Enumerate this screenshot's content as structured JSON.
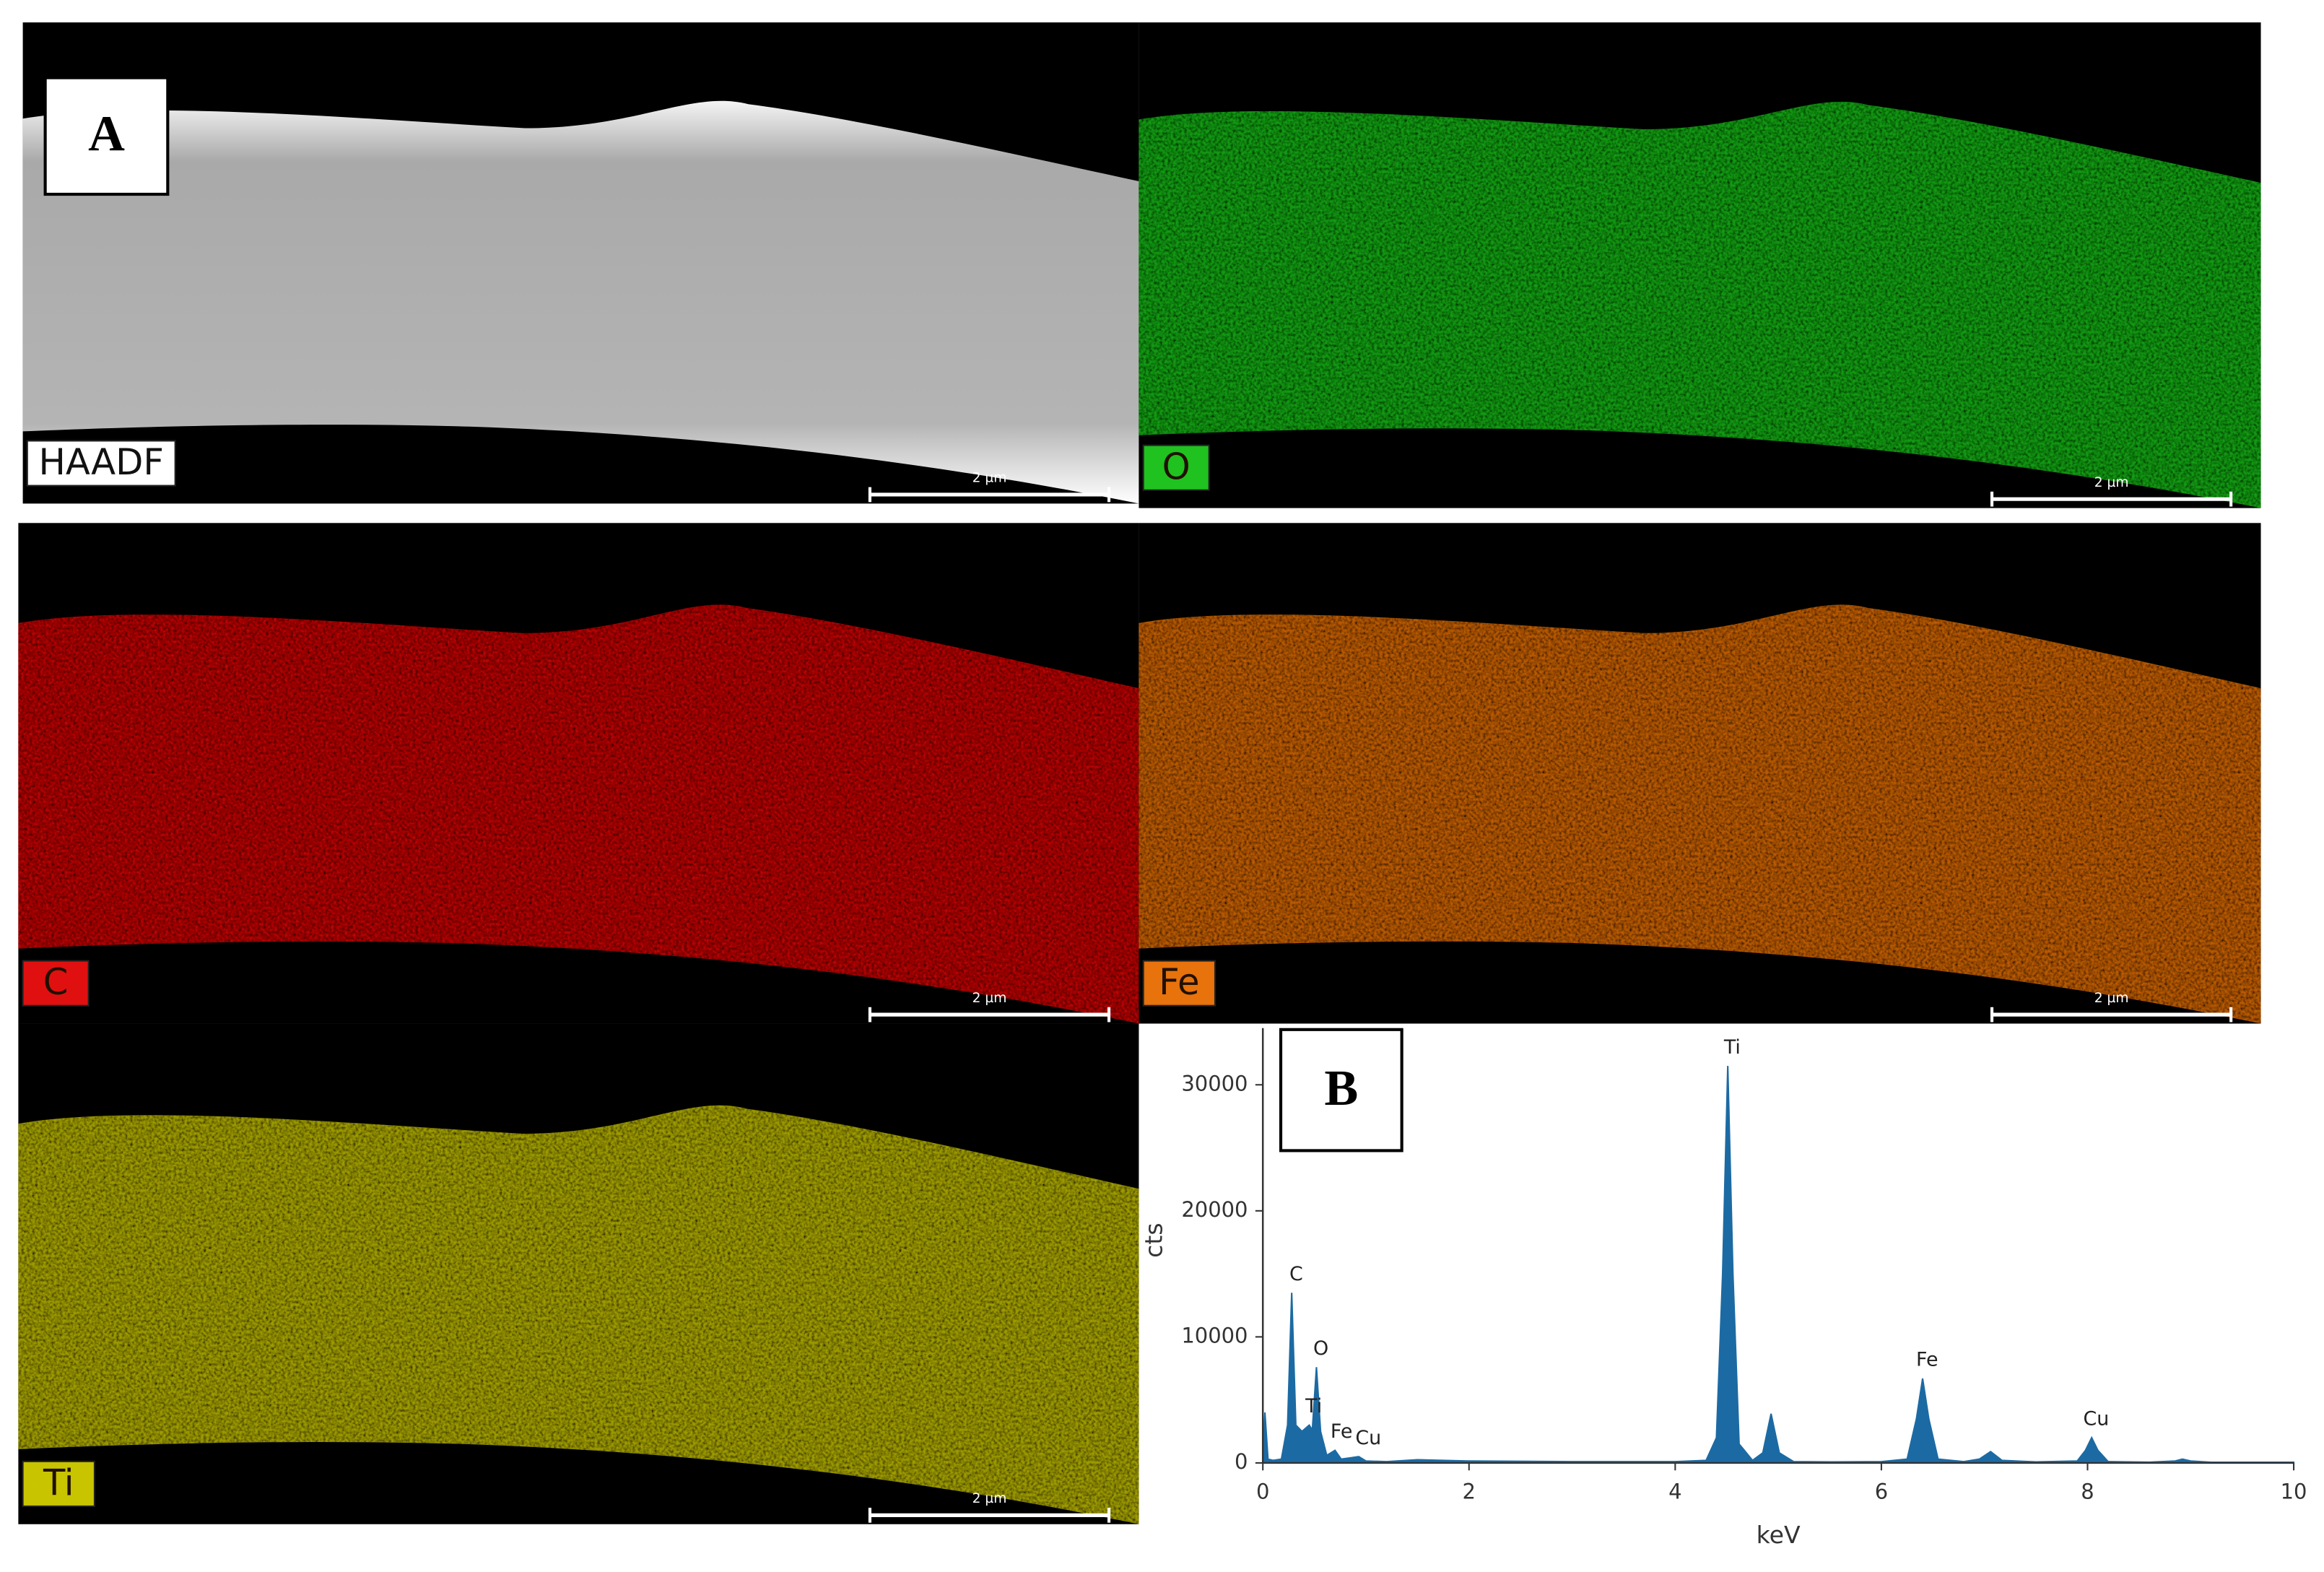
{
  "figure": {
    "panel_labels": [
      "A",
      "B"
    ],
    "maps": [
      {
        "label": "HAADF",
        "scale_bar": "2 µm",
        "color": "#d8d8d8"
      },
      {
        "label": "O",
        "scale_bar": "2 µm",
        "color": "#1fc21f"
      },
      {
        "label": "C",
        "scale_bar": "2 µm",
        "color": "#e01010"
      },
      {
        "label": "Fe",
        "scale_bar": "2 µm",
        "color": "#e8720c"
      },
      {
        "label": "Ti",
        "scale_bar": "2 µm",
        "color": "#c8c400"
      }
    ]
  },
  "chart_data": {
    "type": "area",
    "xlabel": "keV",
    "ylabel": "cts",
    "color": "#1c6aa3",
    "xlim": [
      0,
      10
    ],
    "ylim": [
      0,
      34500
    ],
    "xticks": [
      0,
      2,
      4,
      6,
      8,
      10
    ],
    "yticks": [
      0,
      10000,
      20000,
      30000
    ],
    "x": [
      0,
      0.02,
      0.05,
      0.1,
      0.18,
      0.24,
      0.28,
      0.32,
      0.38,
      0.45,
      0.48,
      0.52,
      0.56,
      0.62,
      0.7,
      0.76,
      0.85,
      0.93,
      1.0,
      1.2,
      1.5,
      2,
      3,
      4,
      4.3,
      4.4,
      4.46,
      4.51,
      4.56,
      4.62,
      4.75,
      4.85,
      4.93,
      5.01,
      5.15,
      5.5,
      6,
      6.25,
      6.34,
      6.4,
      6.46,
      6.55,
      6.8,
      6.95,
      7.06,
      7.17,
      7.5,
      7.9,
      7.98,
      8.04,
      8.1,
      8.2,
      8.6,
      8.85,
      8.92,
      9.0,
      9.2,
      10
    ],
    "values": [
      0,
      4000,
      300,
      200,
      300,
      3000,
      13500,
      3000,
      2500,
      3000,
      2600,
      7600,
      2500,
      600,
      1000,
      300,
      400,
      500,
      150,
      100,
      250,
      150,
      100,
      100,
      200,
      2000,
      15000,
      31500,
      15000,
      1500,
      200,
      800,
      3900,
      800,
      100,
      80,
      100,
      300,
      3500,
      6700,
      3500,
      300,
      100,
      300,
      900,
      200,
      80,
      150,
      1000,
      2000,
      1000,
      100,
      60,
      150,
      300,
      150,
      50,
      50
    ],
    "annotations": [
      {
        "text": "C",
        "x": 0.28,
        "y": 13500
      },
      {
        "text": "O",
        "x": 0.52,
        "y": 7600
      },
      {
        "text": "Ti",
        "x": 0.45,
        "y": 3000
      },
      {
        "text": "Fe",
        "x": 0.72,
        "y": 1000
      },
      {
        "text": "Cu",
        "x": 0.98,
        "y": 500
      },
      {
        "text": "Ti",
        "x": 4.51,
        "y": 31500
      },
      {
        "text": "Fe",
        "x": 6.4,
        "y": 6700
      },
      {
        "text": "Cu",
        "x": 8.04,
        "y": 2000
      }
    ]
  }
}
